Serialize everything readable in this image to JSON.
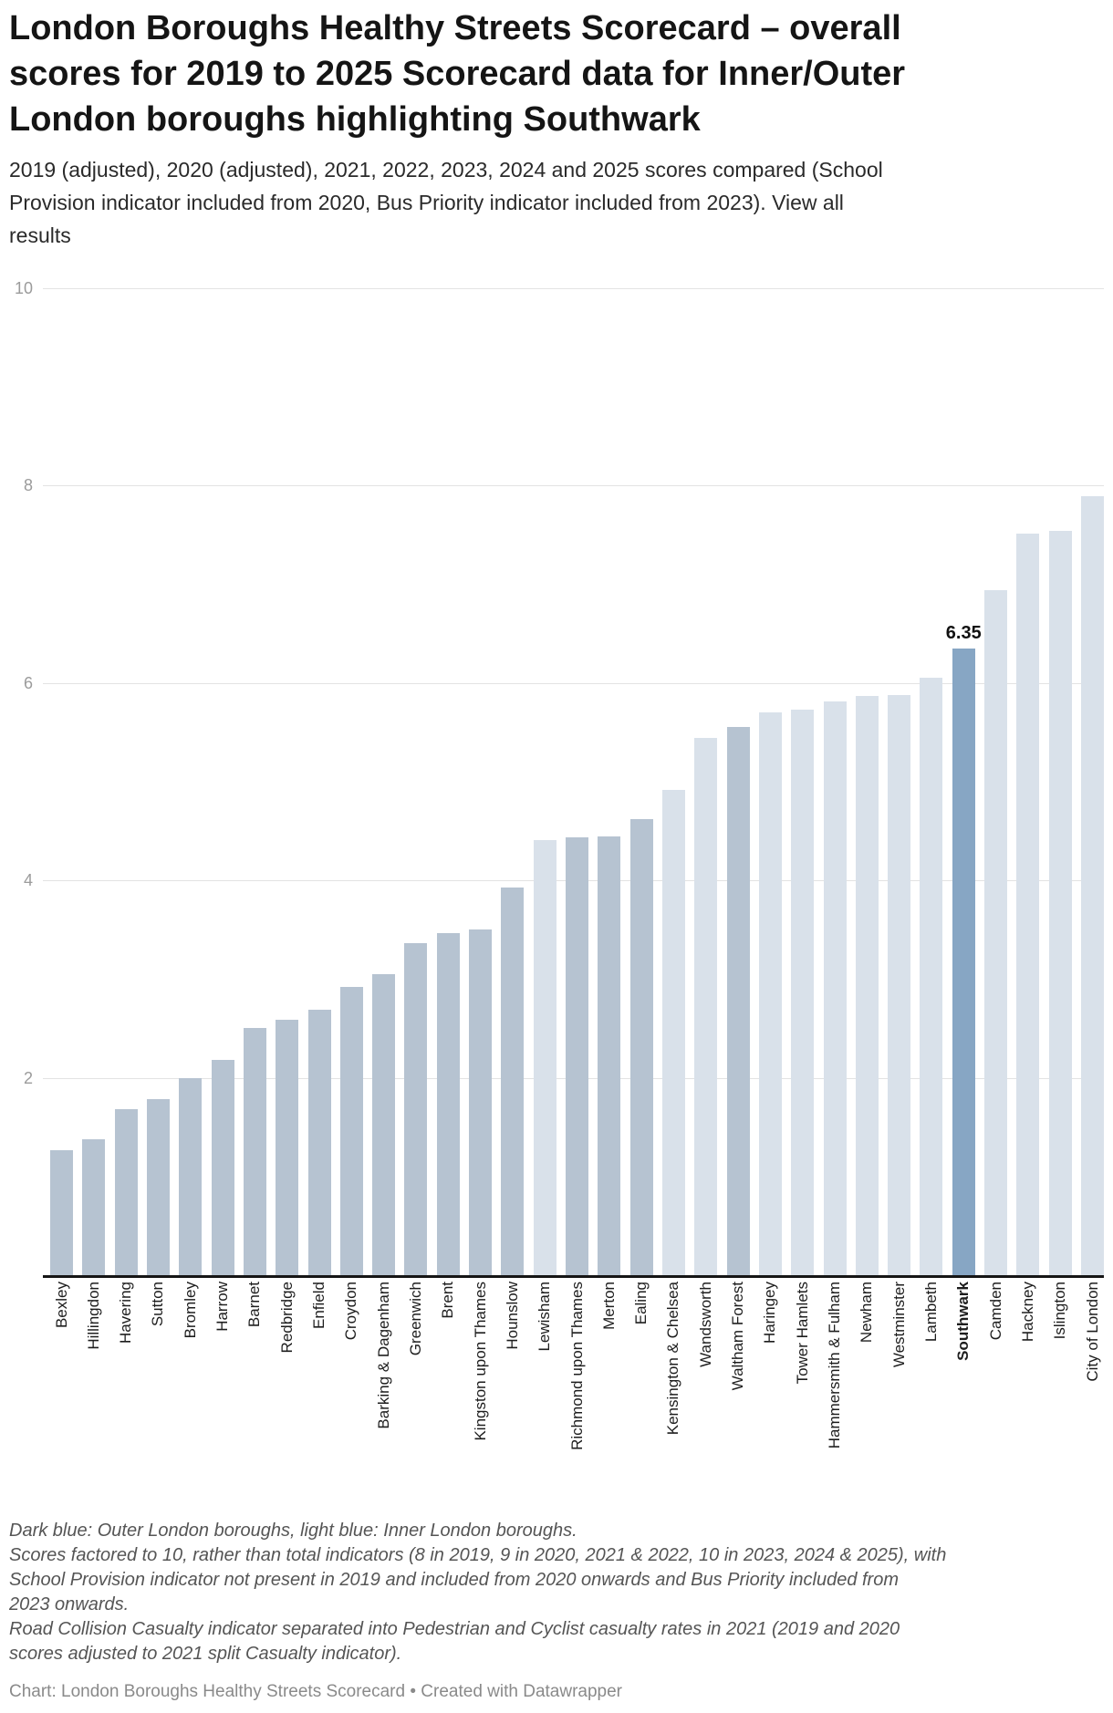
{
  "header": {
    "title": "London Boroughs Healthy Streets Scorecard – overall\nscores for 2019 to 2025 Scorecard data for Inner/Outer\nLondon boroughs highlighting Southwark",
    "subtitle_text": "2019 (adjusted), 2020 (adjusted), 2021, 2022, 2023, 2024 and 2025 scores compared (School\nProvision indicator included from 2020, Bus Priority indicator included from 2023). ",
    "view_all_link": "View all\nresults"
  },
  "chart_data": {
    "type": "bar",
    "title": "London Boroughs Healthy Streets Scorecard – overall scores for 2019 to 2025 Scorecard data for Inner/Outer London boroughs highlighting Southwark",
    "ylabel": "",
    "xlabel": "",
    "ylim": [
      0,
      10
    ],
    "yticks": [
      10,
      8,
      6,
      4,
      2
    ],
    "grid": true,
    "legend_position": "none",
    "highlight": "Southwark",
    "annotation": {
      "category": "Southwark",
      "label": "6.35"
    },
    "colors": {
      "outer": "#b6c3d1",
      "inner": "#d9e1ea",
      "highlight": "#87a6c4"
    },
    "group_meaning": "Dark blue bars = Outer London boroughs, light blue bars = Inner London boroughs, steel blue = highlighted Southwark",
    "boroughs": [
      {
        "name": "Bexley",
        "value": 1.27,
        "group": "outer"
      },
      {
        "name": "Hillingdon",
        "value": 1.38,
        "group": "outer"
      },
      {
        "name": "Havering",
        "value": 1.68,
        "group": "outer"
      },
      {
        "name": "Sutton",
        "value": 1.78,
        "group": "outer"
      },
      {
        "name": "Bromley",
        "value": 2.0,
        "group": "outer"
      },
      {
        "name": "Harrow",
        "value": 2.18,
        "group": "outer"
      },
      {
        "name": "Barnet",
        "value": 2.5,
        "group": "outer"
      },
      {
        "name": "Redbridge",
        "value": 2.59,
        "group": "outer"
      },
      {
        "name": "Enfield",
        "value": 2.69,
        "group": "outer"
      },
      {
        "name": "Croydon",
        "value": 2.92,
        "group": "outer"
      },
      {
        "name": "Barking & Dagenham",
        "value": 3.05,
        "group": "outer"
      },
      {
        "name": "Greenwich",
        "value": 3.36,
        "group": "outer"
      },
      {
        "name": "Brent",
        "value": 3.47,
        "group": "outer"
      },
      {
        "name": "Kingston upon Thames",
        "value": 3.5,
        "group": "outer"
      },
      {
        "name": "Hounslow",
        "value": 3.93,
        "group": "outer"
      },
      {
        "name": "Lewisham",
        "value": 4.41,
        "group": "inner"
      },
      {
        "name": "Richmond upon Thames",
        "value": 4.44,
        "group": "outer"
      },
      {
        "name": "Merton",
        "value": 4.45,
        "group": "outer"
      },
      {
        "name": "Ealing",
        "value": 4.62,
        "group": "outer"
      },
      {
        "name": "Kensington & Chelsea",
        "value": 4.92,
        "group": "inner"
      },
      {
        "name": "Wandsworth",
        "value": 5.44,
        "group": "inner"
      },
      {
        "name": "Waltham Forest",
        "value": 5.55,
        "group": "outer"
      },
      {
        "name": "Haringey",
        "value": 5.7,
        "group": "inner"
      },
      {
        "name": "Tower Hamlets",
        "value": 5.73,
        "group": "inner"
      },
      {
        "name": "Hammersmith & Fulham",
        "value": 5.81,
        "group": "inner"
      },
      {
        "name": "Newham",
        "value": 5.87,
        "group": "inner"
      },
      {
        "name": "Westminster",
        "value": 5.88,
        "group": "inner"
      },
      {
        "name": "Lambeth",
        "value": 6.05,
        "group": "inner"
      },
      {
        "name": "Southwark",
        "value": 6.35,
        "group": "highlight"
      },
      {
        "name": "Camden",
        "value": 6.94,
        "group": "inner"
      },
      {
        "name": "Hackney",
        "value": 7.51,
        "group": "inner"
      },
      {
        "name": "Islington",
        "value": 7.54,
        "group": "inner"
      },
      {
        "name": "City of London",
        "value": 7.89,
        "group": "inner"
      }
    ]
  },
  "notes": {
    "note1": "Dark blue: Outer London boroughs, light blue: Inner London boroughs.",
    "note2": "Scores factored to 10, rather than total indicators (8 in 2019, 9 in 2020, 2021 & 2022, 10 in 2023, 2024 & 2025), with\nSchool Provision indicator not present in 2019 and included from 2020 onwards and Bus Priority included from\n2023 onwards.",
    "note3": "Road Collision Casualty indicator separated into Pedestrian and Cyclist casualty rates in 2021 (2019 and 2020\nscores adjusted to 2021 split Casualty indicator)."
  },
  "attribution": "Chart: London Boroughs Healthy Streets Scorecard • Created with Datawrapper"
}
